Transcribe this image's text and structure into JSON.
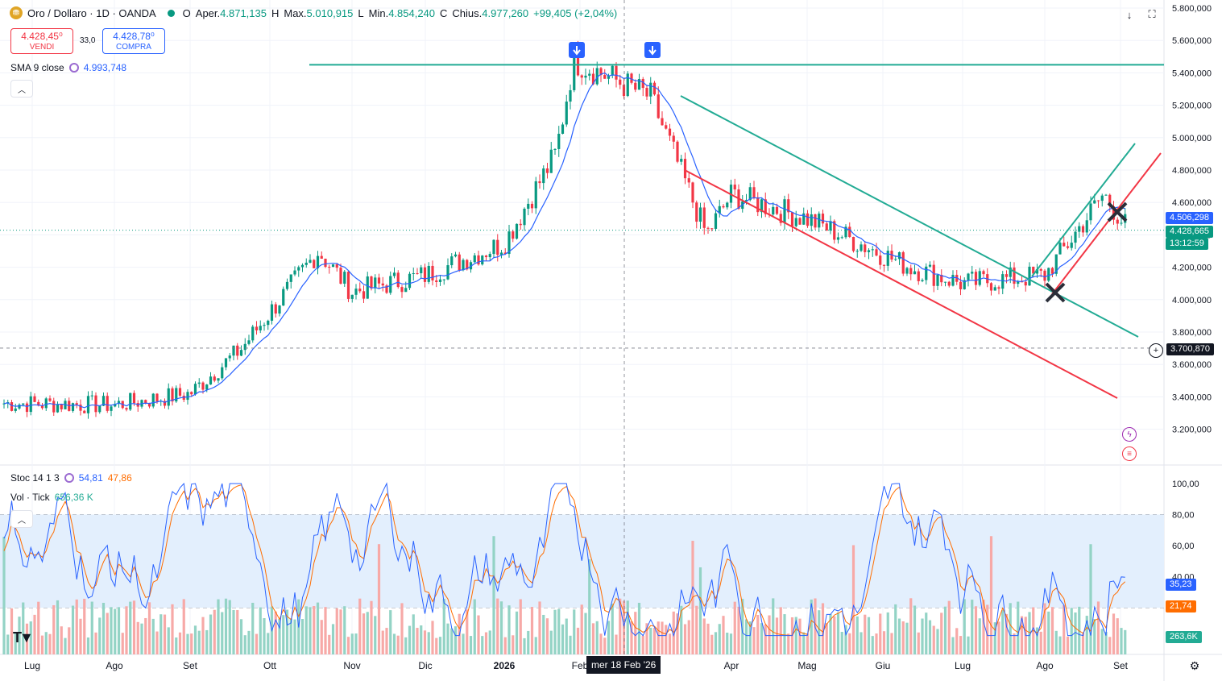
{
  "header": {
    "symbol_title": "Oro / Dollaro · 1D · OANDA",
    "open_label": "O",
    "open_text": "Aper.",
    "open_value": "4.871,135",
    "high_label": "H",
    "high_text": "Max.",
    "high_value": "5.010,915",
    "low_label": "L",
    "low_text": "Min.",
    "low_value": "4.854,240",
    "close_label": "C",
    "close_text": "Chius.",
    "close_value": "4.977,260",
    "change": "+99,405 (+2,04%)",
    "sell_price": "4.428,45⁰",
    "sell_label": "VENDI",
    "spread": "33,0",
    "buy_price": "4.428,78⁰",
    "buy_label": "COMPRA"
  },
  "indicators": {
    "sma_name": "SMA 9 close",
    "sma_value": "4.993,748",
    "stoch_name": "Stoc 14 1 3",
    "stoch_k": "54,81",
    "stoch_d": "47,86",
    "vol_name": "Vol · Tick",
    "vol_value": "656,36 K"
  },
  "price_tags": {
    "sma": "4.506,298",
    "last": "4.428,665",
    "countdown": "13:12:59",
    "crosshair": "3.700,870",
    "stoch_k": "35,23",
    "stoch_d": "21,74",
    "volume": "263,6K"
  },
  "crosshair_date": "mer 18 Feb '26",
  "icons": [
    "gold-coin-icon",
    "circle-arrows-icon",
    "down-arrow-icon",
    "fullscreen-icon",
    "chevron-up-icon",
    "plus-circle-icon",
    "lightning-icon",
    "us-flag-icon",
    "tradingview-logo-icon",
    "settings-gear-icon"
  ],
  "colors": {
    "up": "#089981",
    "down": "#f23645",
    "sma": "#2962ff",
    "stoch_k": "#2962ff",
    "stoch_d": "#ff6d00",
    "band": "#e3effd",
    "green_line": "#22ab94",
    "red_line": "#f23645"
  },
  "chart_data": [
    {
      "type": "candlestick",
      "title": "Oro / Dollaro · 1D · OANDA",
      "y_ticks": [
        "5.800,000",
        "5.600,000",
        "5.400,000",
        "5.200,000",
        "5.000,000",
        "4.800,000",
        "4.600,000",
        "4.400,000",
        "4.200,000",
        "4.000,000",
        "3.800,000",
        "3.600,000",
        "3.400,000",
        "3.200,000"
      ],
      "ylim": [
        3100,
        5800
      ],
      "x_ticks": [
        "Lug",
        "Ago",
        "Set",
        "Ott",
        "Nov",
        "Dic",
        "2026",
        "Feb",
        "Apr",
        "Mag",
        "Giu",
        "Lug",
        "Ago",
        "Set"
      ],
      "grid": true,
      "close_path": [
        [
          "Lug",
          3360
        ],
        [
          "Ago",
          3350
        ],
        [
          "Set",
          3420
        ],
        [
          "Ott",
          3700
        ],
        [
          "mid-Ott",
          4300
        ],
        [
          "Nov",
          4050
        ],
        [
          "Dic",
          4150
        ],
        [
          "2026",
          4350
        ],
        [
          "Feb",
          4900
        ],
        [
          "Feb peak",
          5480
        ],
        [
          "Mar",
          5250
        ],
        [
          "Mar low",
          4400
        ],
        [
          "Apr",
          4650
        ],
        [
          "Mag",
          4500
        ],
        [
          "Giu",
          4200
        ],
        [
          "Lug",
          4100
        ],
        [
          "Ago",
          4150
        ],
        [
          "late Ago",
          4650
        ],
        [
          "Set",
          4430
        ]
      ],
      "series": [
        {
          "name": "SMA 9 close",
          "value": "4.993,748"
        }
      ],
      "horizontal_levels": [
        5450,
        3700
      ],
      "annotations": [
        "green resistance line ~5.450",
        "descending green channel line",
        "descending red channel line",
        "ascending green channel line",
        "ascending red channel line",
        "two X markers",
        "two down-arrow markers"
      ]
    },
    {
      "type": "line",
      "title": "Stoc 14 1 3",
      "y_ticks": [
        "100,00",
        "80,00",
        "60,00",
        "40,00"
      ],
      "ylim": [
        0,
        100
      ],
      "band": [
        20,
        80
      ],
      "series": [
        {
          "name": "%K",
          "last": "35,23"
        },
        {
          "name": "%D",
          "last": "21,74"
        }
      ]
    },
    {
      "type": "bar",
      "title": "Vol · Tick",
      "last": "263,6K"
    }
  ]
}
